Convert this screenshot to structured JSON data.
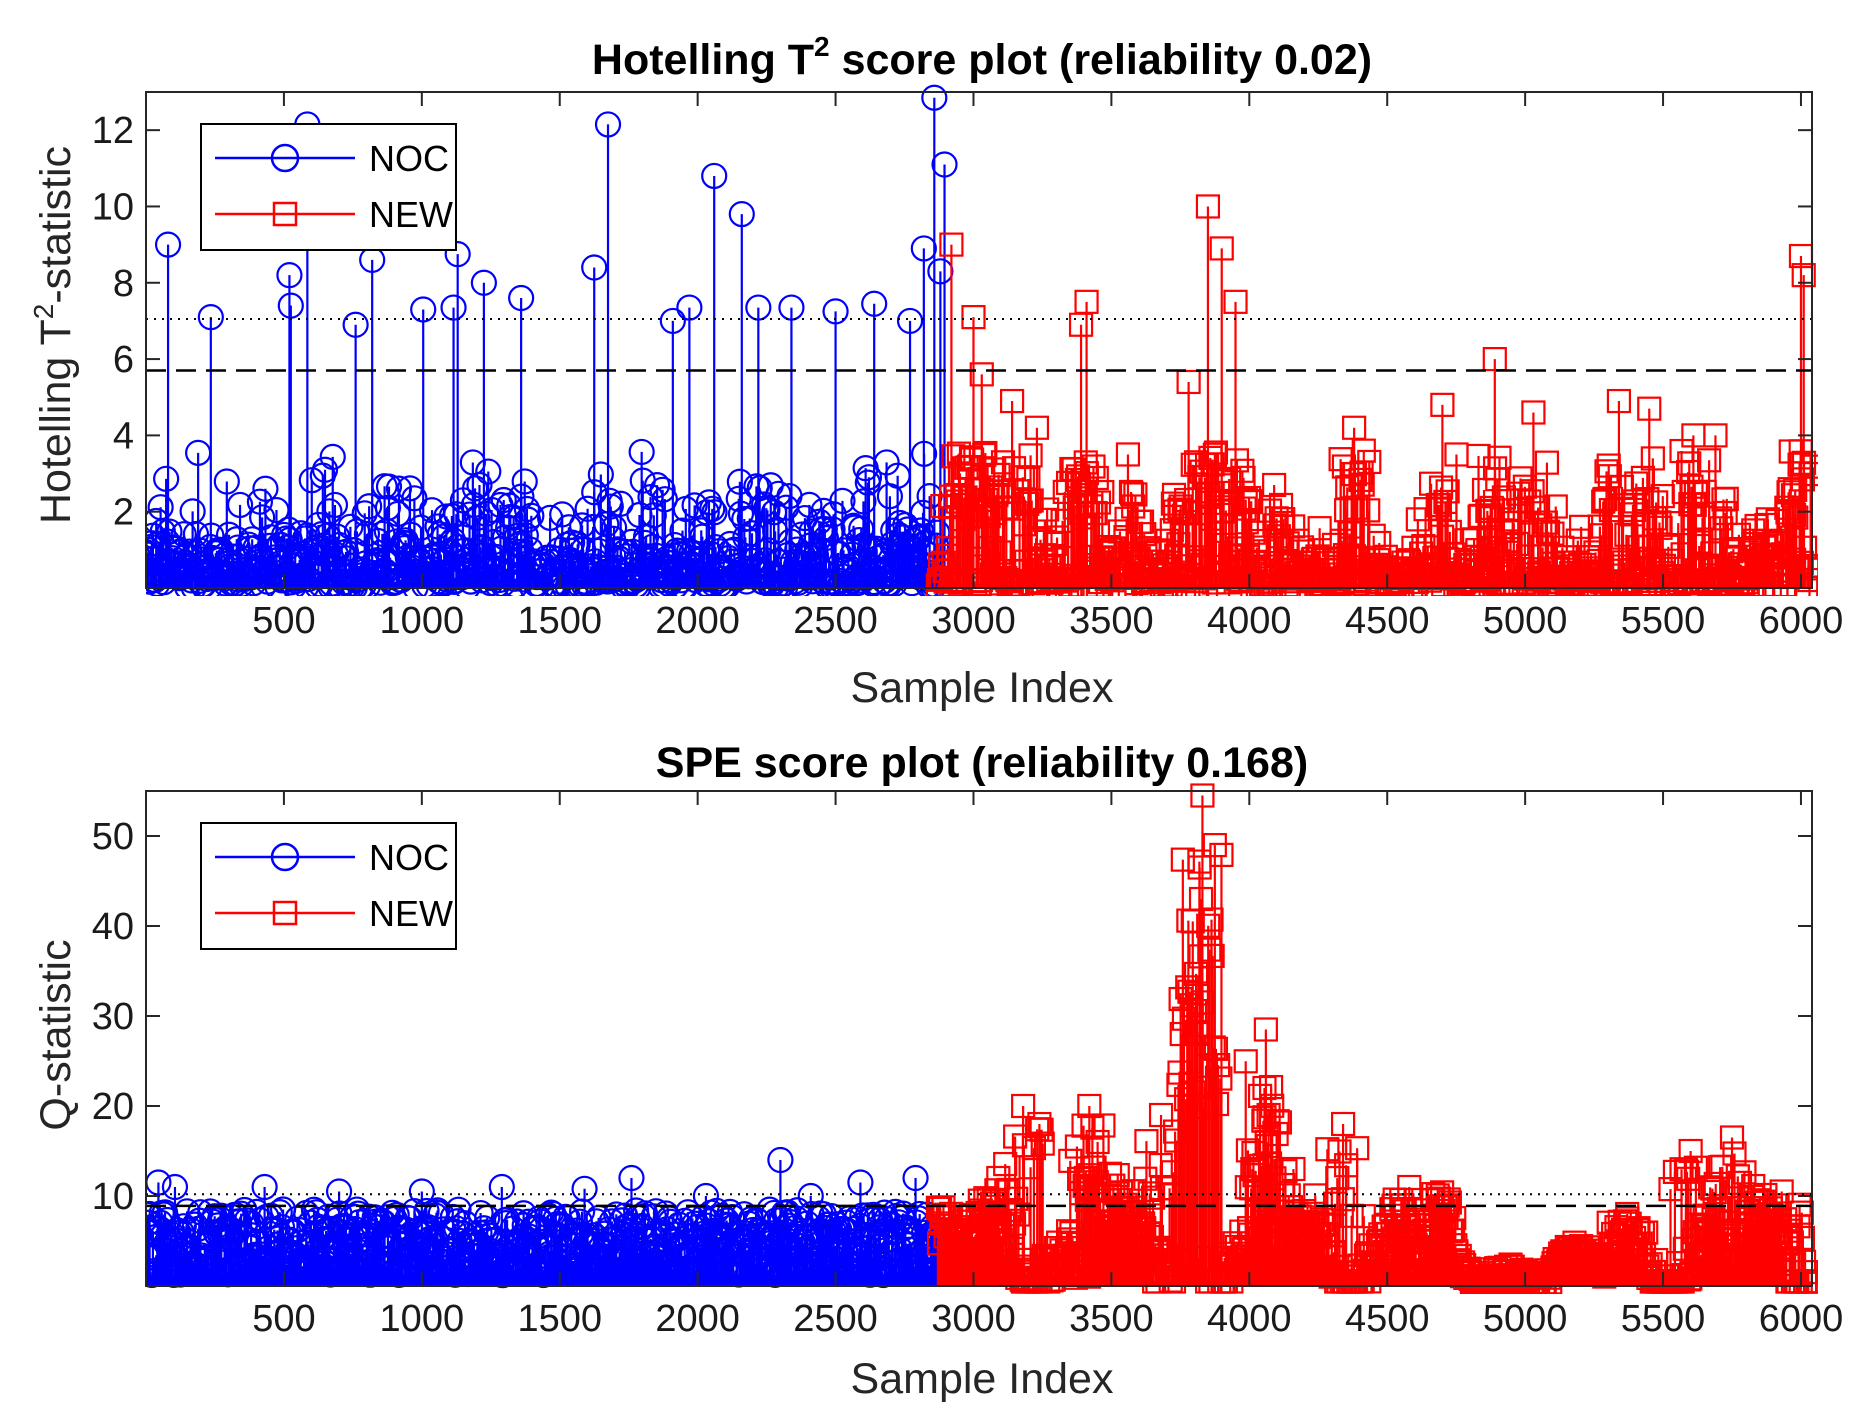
{
  "chart_data": [
    {
      "type": "stem",
      "title_main": "Hotelling T",
      "title_sup": "2",
      "title_rest": " score plot (reliability 0.02)",
      "xlabel": "Sample Index",
      "ylabel_main": "Hotelling T",
      "ylabel_sup": "2",
      "ylabel_rest": "-statistic",
      "xlim": [
        0,
        6040
      ],
      "ylim": [
        0,
        13
      ],
      "xticks": [
        500,
        1000,
        1500,
        2000,
        2500,
        3000,
        3500,
        4000,
        4500,
        5000,
        5500,
        6000
      ],
      "yticks": [
        2,
        4,
        6,
        8,
        10,
        12
      ],
      "limit_dotted": 7.05,
      "limit_dashed": 5.7,
      "legend_position": "top-left",
      "series": [
        {
          "name": "NOC",
          "color": "#0000ff",
          "marker": "circle",
          "x_range": [
            1,
            2870
          ],
          "notable_points": [
            [
              2858,
              12.85
            ],
            [
              585,
              12.15
            ],
            [
              1675,
              12.15
            ],
            [
              2895,
              11.1
            ],
            [
              2060,
              10.8
            ],
            [
              2160,
              9.8
            ],
            [
              1130,
              8.75
            ],
            [
              80,
              9.0
            ],
            [
              2820,
              8.9
            ],
            [
              820,
              8.6
            ],
            [
              1625,
              8.4
            ],
            [
              520,
              8.2
            ],
            [
              1225,
              8.0
            ],
            [
              2880,
              8.3
            ],
            [
              1360,
              7.6
            ],
            [
              2640,
              7.45
            ],
            [
              2500,
              7.25
            ],
            [
              2340,
              7.35
            ],
            [
              2220,
              7.35
            ],
            [
              1970,
              7.35
            ],
            [
              1005,
              7.3
            ],
            [
              1115,
              7.35
            ],
            [
              525,
              7.4
            ],
            [
              235,
              7.1
            ],
            [
              2770,
              7.0
            ],
            [
              1910,
              7.0
            ],
            [
              760,
              6.9
            ]
          ],
          "baseline_max": 4.2
        },
        {
          "name": "NEW",
          "color": "#ff0000",
          "marker": "square",
          "x_range": [
            2871,
            6040
          ],
          "peak_regions": [
            [
              2920,
              9.0
            ],
            [
              3000,
              7.1
            ],
            [
              3030,
              5.6
            ],
            [
              3140,
              4.9
            ],
            [
              3230,
              4.2
            ],
            [
              3390,
              6.9
            ],
            [
              3410,
              7.5
            ],
            [
              3560,
              3.5
            ],
            [
              3780,
              5.4
            ],
            [
              3850,
              10.0
            ],
            [
              3900,
              8.9
            ],
            [
              3950,
              7.5
            ],
            [
              4090,
              2.7
            ],
            [
              4380,
              4.2
            ],
            [
              4700,
              4.8
            ],
            [
              4890,
              6.0
            ],
            [
              5030,
              4.6
            ],
            [
              5340,
              4.9
            ],
            [
              5450,
              4.7
            ],
            [
              5610,
              4.0
            ],
            [
              5690,
              4.0
            ],
            [
              5880,
              1.8
            ],
            [
              6000,
              8.7
            ],
            [
              6010,
              8.2
            ]
          ],
          "baseline_max": 3.0
        }
      ]
    },
    {
      "type": "stem",
      "title": "SPE score plot (reliability 0.168)",
      "xlabel": "Sample Index",
      "ylabel": "Q-statistic",
      "xlim": [
        0,
        6040
      ],
      "ylim": [
        0,
        55
      ],
      "xticks": [
        500,
        1000,
        1500,
        2000,
        2500,
        3000,
        3500,
        4000,
        4500,
        5000,
        5500,
        6000
      ],
      "yticks": [
        10,
        20,
        30,
        40,
        50
      ],
      "limit_dotted": 10.2,
      "limit_dashed": 8.9,
      "legend_position": "top-left",
      "series": [
        {
          "name": "NOC",
          "color": "#0000ff",
          "marker": "circle",
          "x_range": [
            1,
            2870
          ],
          "notable_points": [
            [
              2300,
              14.0
            ],
            [
              45,
              11.5
            ],
            [
              1760,
              12.0
            ],
            [
              2790,
              12.0
            ],
            [
              2590,
              11.5
            ],
            [
              105,
              11.0
            ],
            [
              430,
              11.0
            ],
            [
              1290,
              11.0
            ],
            [
              1590,
              10.8
            ],
            [
              1000,
              10.5
            ],
            [
              700,
              10.5
            ],
            [
              2030,
              10.0
            ],
            [
              2410,
              10.0
            ]
          ],
          "baseline_range": [
            1.2,
            8.5
          ]
        },
        {
          "name": "NEW",
          "color": "#ff0000",
          "marker": "square",
          "x_range": [
            2871,
            6040
          ],
          "peak_regions": [
            [
              3090,
              12.0
            ],
            [
              3180,
              20.0
            ],
            [
              3420,
              20.0
            ],
            [
              3450,
              16.0
            ],
            [
              3680,
              19.0
            ],
            [
              3830,
              54.5
            ],
            [
              3820,
              46.5
            ],
            [
              3825,
              43.0
            ],
            [
              3810,
              32.5
            ],
            [
              3808,
              28.0
            ],
            [
              3800,
              21.5
            ],
            [
              4060,
              28.5
            ],
            [
              4055,
              22.0
            ],
            [
              4070,
              19.0
            ],
            [
              4160,
              13.0
            ],
            [
              4340,
              18.0
            ],
            [
              4580,
              11.0
            ],
            [
              5370,
              8.0
            ],
            [
              5600,
              15.0
            ],
            [
              5750,
              16.5
            ],
            [
              5930,
              10.5
            ]
          ],
          "baseline_range": [
            0.5,
            8.0
          ]
        }
      ]
    }
  ]
}
